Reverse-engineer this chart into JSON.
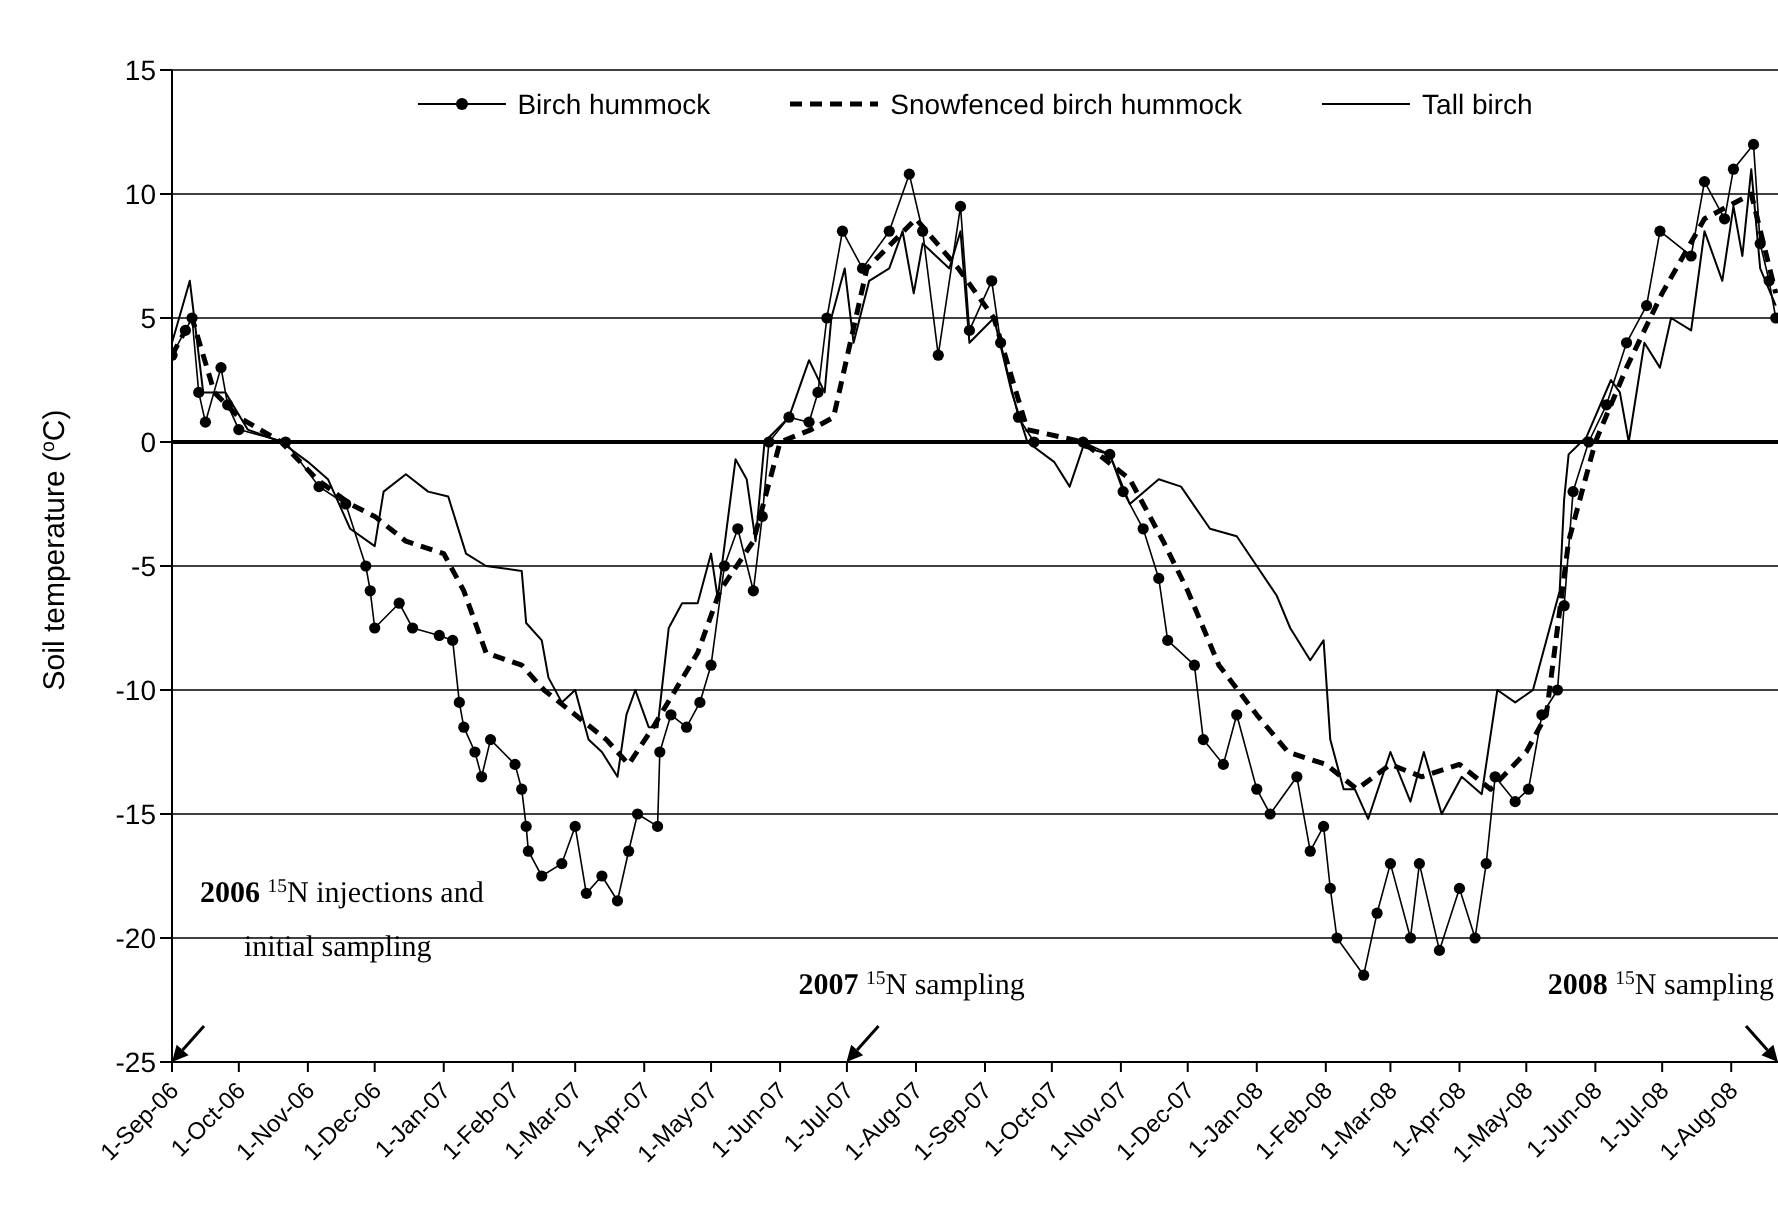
{
  "chart_data": {
    "type": "line",
    "ylabel": "Soil temperature ($^{o}$C)",
    "xlim": [
      "2006-09-01",
      "2008-08-22"
    ],
    "ylim": [
      -25,
      15
    ],
    "yticks": [
      -25,
      -20,
      -15,
      -10,
      -5,
      0,
      5,
      10,
      15
    ],
    "xticks": [
      {
        "value": "2006-09-01",
        "label": "1-Sep-06"
      },
      {
        "value": "2006-10-01",
        "label": "1-Oct-06"
      },
      {
        "value": "2006-11-01",
        "label": "1-Nov-06"
      },
      {
        "value": "2006-12-01",
        "label": "1-Dec-06"
      },
      {
        "value": "2007-01-01",
        "label": "1-Jan-07"
      },
      {
        "value": "2007-02-01",
        "label": "1-Feb-07"
      },
      {
        "value": "2007-03-01",
        "label": "1-Mar-07"
      },
      {
        "value": "2007-04-01",
        "label": "1-Apr-07"
      },
      {
        "value": "2007-05-01",
        "label": "1-May-07"
      },
      {
        "value": "2007-06-01",
        "label": "1-Jun-07"
      },
      {
        "value": "2007-07-01",
        "label": "1-Jul-07"
      },
      {
        "value": "2007-08-01",
        "label": "1-Aug-07"
      },
      {
        "value": "2007-09-01",
        "label": "1-Sep-07"
      },
      {
        "value": "2007-10-01",
        "label": "1-Oct-07"
      },
      {
        "value": "2007-11-01",
        "label": "1-Nov-07"
      },
      {
        "value": "2007-12-01",
        "label": "1-Dec-07"
      },
      {
        "value": "2008-01-01",
        "label": "1-Jan-08"
      },
      {
        "value": "2008-02-01",
        "label": "1-Feb-08"
      },
      {
        "value": "2008-03-01",
        "label": "1-Mar-08"
      },
      {
        "value": "2008-04-01",
        "label": "1-Apr-08"
      },
      {
        "value": "2008-05-01",
        "label": "1-May-08"
      },
      {
        "value": "2008-06-01",
        "label": "1-Jun-08"
      },
      {
        "value": "2008-07-01",
        "label": "1-Jul-08"
      },
      {
        "value": "2008-08-01",
        "label": "1-Aug-08"
      }
    ],
    "grid": "y",
    "legend": "top",
    "ref_lines": [
      {
        "axis": "y",
        "value": 0
      }
    ],
    "annotations": [
      "2006 $^{15}$N injections and initial sampling",
      "2007 $^{15}$N sampling",
      "2008 $^{15}$N sampling"
    ],
    "series": [
      {
        "name": "Birch hummock",
        "color": "#000000",
        "marker": "circle",
        "line_style": "solid",
        "x": [
          "2006-09-01",
          "2006-09-07",
          "2006-09-10",
          "2006-09-13",
          "2006-09-16",
          "2006-09-23",
          "2006-09-26",
          "2006-10-01",
          "2006-10-22",
          "2006-11-06",
          "2006-11-18",
          "2006-11-27",
          "2006-11-29",
          "2006-12-01",
          "2006-12-12",
          "2006-12-18",
          "2006-12-30",
          "2007-01-05",
          "2007-01-08",
          "2007-01-10",
          "2007-01-15",
          "2007-01-18",
          "2007-01-22",
          "2007-02-02",
          "2007-02-05",
          "2007-02-07",
          "2007-02-08",
          "2007-02-14",
          "2007-02-23",
          "2007-03-01",
          "2007-03-06",
          "2007-03-13",
          "2007-03-20",
          "2007-03-25",
          "2007-03-29",
          "2007-04-07",
          "2007-04-08",
          "2007-04-13",
          "2007-04-20",
          "2007-04-26",
          "2007-05-01",
          "2007-05-07",
          "2007-05-13",
          "2007-05-20",
          "2007-05-24",
          "2007-05-27",
          "2007-06-05",
          "2007-06-14",
          "2007-06-18",
          "2007-06-22",
          "2007-06-29",
          "2007-07-08",
          "2007-07-20",
          "2007-07-29",
          "2007-08-04",
          "2007-08-11",
          "2007-08-21",
          "2007-08-25",
          "2007-09-04",
          "2007-09-08",
          "2007-09-16",
          "2007-09-23",
          "2007-10-15",
          "2007-10-27",
          "2007-11-02",
          "2007-11-11",
          "2007-11-18",
          "2007-11-22",
          "2007-12-04",
          "2007-12-08",
          "2007-12-17",
          "2007-12-23",
          "2008-01-01",
          "2008-01-07",
          "2008-01-19",
          "2008-01-25",
          "2008-01-31",
          "2008-02-03",
          "2008-02-06",
          "2008-02-18",
          "2008-02-24",
          "2008-03-01",
          "2008-03-10",
          "2008-03-14",
          "2008-03-23",
          "2008-04-01",
          "2008-04-08",
          "2008-04-13",
          "2008-04-17",
          "2008-04-26",
          "2008-05-02",
          "2008-05-08",
          "2008-05-15",
          "2008-05-18",
          "2008-05-22",
          "2008-05-29",
          "2008-06-06",
          "2008-06-15",
          "2008-06-24",
          "2008-06-30",
          "2008-07-14",
          "2008-07-20",
          "2008-07-29",
          "2008-08-02",
          "2008-08-11",
          "2008-08-14",
          "2008-08-18",
          "2008-08-21"
        ],
        "values": [
          3.5,
          4.5,
          5,
          2,
          0.8,
          3,
          1.5,
          0.5,
          0,
          -1.8,
          -2.5,
          -5,
          -6,
          -7.5,
          -6.5,
          -7.5,
          -7.8,
          -8,
          -10.5,
          -11.5,
          -12.5,
          -13.5,
          -12,
          -13,
          -14,
          -15.5,
          -16.5,
          -17.5,
          -17,
          -15.5,
          -18.2,
          -17.5,
          -18.5,
          -16.5,
          -15,
          -15.5,
          -12.5,
          -11,
          -11.5,
          -10.5,
          -9,
          -5,
          -3.5,
          -6,
          -3,
          0,
          1,
          0.8,
          2,
          5,
          8.5,
          7,
          8.5,
          10.8,
          8.5,
          3.5,
          9.5,
          4.5,
          6.5,
          4,
          1,
          0,
          0,
          -0.5,
          -2,
          -3.5,
          -5.5,
          -8,
          -9,
          -12,
          -13,
          -11,
          -14,
          -15,
          -13.5,
          -16.5,
          -15.5,
          -18,
          -20,
          -21.5,
          -19,
          -17,
          -20,
          -17,
          -20.5,
          -18,
          -20,
          -17,
          -13.5,
          -14.5,
          -14,
          -11,
          -10,
          -6.6,
          -2,
          0,
          1.5,
          4,
          5.5,
          8.5,
          7.5,
          10.5,
          9,
          11,
          12,
          8,
          6.5,
          5
        ]
      },
      {
        "name": "Snowfenced birch hummock",
        "color": "#000000",
        "marker": "none",
        "line_style": "dashed",
        "x": [
          "2006-09-01",
          "2006-09-10",
          "2006-09-20",
          "2006-10-01",
          "2006-10-20",
          "2006-11-05",
          "2006-11-20",
          "2006-12-01",
          "2006-12-15",
          "2007-01-01",
          "2007-01-10",
          "2007-01-20",
          "2007-02-05",
          "2007-02-15",
          "2007-03-01",
          "2007-03-15",
          "2007-03-25",
          "2007-04-05",
          "2007-04-15",
          "2007-04-25",
          "2007-05-05",
          "2007-05-20",
          "2007-06-01",
          "2007-06-15",
          "2007-06-25",
          "2007-07-10",
          "2007-08-01",
          "2007-08-20",
          "2007-09-05",
          "2007-09-20",
          "2007-10-15",
          "2007-11-05",
          "2007-11-20",
          "2007-12-01",
          "2007-12-15",
          "2008-01-01",
          "2008-01-15",
          "2008-02-01",
          "2008-02-15",
          "2008-03-01",
          "2008-03-15",
          "2008-04-01",
          "2008-04-15",
          "2008-05-01",
          "2008-05-10",
          "2008-05-20",
          "2008-06-01",
          "2008-06-15",
          "2008-07-01",
          "2008-07-20",
          "2008-08-10",
          "2008-08-21"
        ],
        "values": [
          3.5,
          5,
          2,
          1,
          0,
          -1.5,
          -2.5,
          -3,
          -4,
          -4.5,
          -6,
          -8.5,
          -9,
          -10,
          -11,
          -12,
          -13,
          -11.5,
          -10,
          -8.5,
          -6,
          -4,
          0,
          0.5,
          1,
          7,
          9,
          7,
          5,
          0.5,
          0,
          -1.5,
          -4,
          -6,
          -9,
          -11,
          -12.5,
          -13,
          -14,
          -13,
          -13.5,
          -13,
          -14,
          -12.5,
          -11,
          -4,
          0,
          3,
          6,
          9,
          10,
          6
        ]
      },
      {
        "name": "Tall birch",
        "color": "#000000",
        "marker": "none",
        "line_style": "solid",
        "x": [
          "2006-09-01",
          "2006-09-09",
          "2006-09-15",
          "2006-09-25",
          "2006-10-05",
          "2006-10-20",
          "2006-11-01",
          "2006-11-10",
          "2006-11-20",
          "2006-12-01",
          "2006-12-05",
          "2006-12-15",
          "2006-12-25",
          "2007-01-03",
          "2007-01-11",
          "2007-01-20",
          "2007-02-05",
          "2007-02-07",
          "2007-02-14",
          "2007-02-17",
          "2007-02-23",
          "2007-03-01",
          "2007-03-07",
          "2007-03-13",
          "2007-03-20",
          "2007-03-24",
          "2007-03-28",
          "2007-04-03",
          "2007-04-07",
          "2007-04-12",
          "2007-04-18",
          "2007-04-25",
          "2007-05-01",
          "2007-05-04",
          "2007-05-12",
          "2007-05-17",
          "2007-05-21",
          "2007-05-25",
          "2007-06-05",
          "2007-06-14",
          "2007-06-21",
          "2007-06-24",
          "2007-06-30",
          "2007-07-04",
          "2007-07-11",
          "2007-07-20",
          "2007-07-26",
          "2007-07-31",
          "2007-08-04",
          "2007-08-16",
          "2007-08-21",
          "2007-08-25",
          "2007-09-05",
          "2007-09-13",
          "2007-09-20",
          "2007-10-02",
          "2007-10-09",
          "2007-10-15",
          "2007-10-27",
          "2007-11-05",
          "2007-11-18",
          "2007-11-28",
          "2007-12-11",
          "2007-12-23",
          "2008-01-01",
          "2008-01-10",
          "2008-01-16",
          "2008-01-25",
          "2008-01-31",
          "2008-02-03",
          "2008-02-09",
          "2008-02-14",
          "2008-02-20",
          "2008-03-01",
          "2008-03-10",
          "2008-03-16",
          "2008-03-24",
          "2008-04-02",
          "2008-04-11",
          "2008-04-18",
          "2008-04-26",
          "2008-05-04",
          "2008-05-10",
          "2008-05-16",
          "2008-05-18",
          "2008-05-20",
          "2008-05-28",
          "2008-06-08",
          "2008-06-12",
          "2008-06-16",
          "2008-06-23",
          "2008-06-30",
          "2008-07-05",
          "2008-07-14",
          "2008-07-20",
          "2008-07-28",
          "2008-08-02",
          "2008-08-06",
          "2008-08-10",
          "2008-08-14",
          "2008-08-21"
        ],
        "values": [
          4,
          6.5,
          2,
          2,
          0.5,
          0,
          -0.8,
          -1.5,
          -3.5,
          -4.2,
          -2,
          -1.3,
          -2,
          -2.2,
          -4.5,
          -5,
          -5.2,
          -7.3,
          -8,
          -9.5,
          -10.5,
          -10,
          -12,
          -12.5,
          -13.5,
          -11,
          -10,
          -11.5,
          -11.5,
          -7.5,
          -6.5,
          -6.5,
          -4.5,
          -6.3,
          -0.7,
          -1.5,
          -4,
          0,
          1,
          3.3,
          2,
          5,
          7,
          4,
          6.5,
          7,
          8.5,
          6,
          8,
          7,
          8.5,
          4,
          5,
          2,
          0,
          -0.8,
          -1.8,
          -0.2,
          -0.5,
          -2.5,
          -1.5,
          -1.8,
          -3.5,
          -3.8,
          -5,
          -6.2,
          -7.5,
          -8.8,
          -8,
          -12,
          -14,
          -14,
          -15.2,
          -12.5,
          -14.5,
          -12.5,
          -15,
          -13.5,
          -14.2,
          -10,
          -10.5,
          -10,
          -8,
          -6,
          -2.3,
          -0.5,
          0.2,
          2.5,
          2,
          0,
          4,
          3,
          5,
          4.5,
          8.5,
          6.5,
          9.5,
          7.5,
          11,
          7,
          5.5
        ]
      }
    ]
  }
}
